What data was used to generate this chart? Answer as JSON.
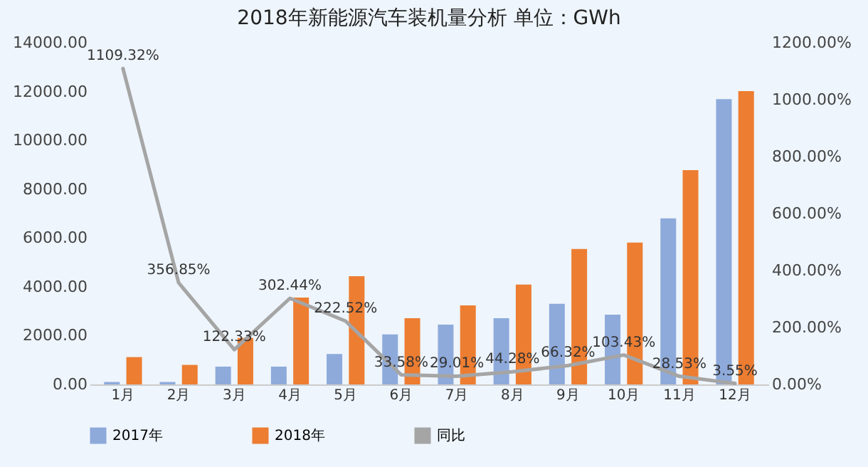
{
  "chart_data": {
    "type": "bar",
    "title": "2018年新能源汽车装机量分析     单位：GWh",
    "categories": [
      "1月",
      "2月",
      "3月",
      "4月",
      "5月",
      "6月",
      "7月",
      "8月",
      "9月",
      "10月",
      "11月",
      "12月"
    ],
    "series": [
      {
        "name": "2017年",
        "color": "#8eaadb",
        "values": [
          100,
          100,
          730,
          730,
          1250,
          2050,
          2450,
          2710,
          3300,
          2860,
          6800,
          11690
        ]
      },
      {
        "name": "2018年",
        "color": "#ed7d31",
        "values": [
          1120,
          800,
          1900,
          3560,
          4430,
          2710,
          3240,
          4090,
          5550,
          5810,
          8780,
          12020
        ]
      },
      {
        "name": "同比",
        "type": "line",
        "axis": "y2",
        "color": "#a5a5a5",
        "values": [
          1109.32,
          356.85,
          122.33,
          302.44,
          222.52,
          33.58,
          29.01,
          44.28,
          66.32,
          103.43,
          28.53,
          3.55
        ],
        "value_labels": [
          "1109.32%",
          "356.85%",
          "122.33%",
          "302.44%",
          "222.52%",
          "33.58%",
          "29.01%",
          "44.28%",
          "66.32%",
          "103.43%",
          "28.53%",
          "3.55%"
        ]
      }
    ],
    "ylim": [
      0,
      14000
    ],
    "yticks": [
      {
        "value": 0,
        "label": "0.00"
      },
      {
        "value": 2000,
        "label": "2000.00"
      },
      {
        "value": 4000,
        "label": "4000.00"
      },
      {
        "value": 6000,
        "label": "6000.00"
      },
      {
        "value": 8000,
        "label": "8000.00"
      },
      {
        "value": 10000,
        "label": "10000.00"
      },
      {
        "value": 12000,
        "label": "12000.00"
      },
      {
        "value": 14000,
        "label": "14000.00"
      }
    ],
    "y2lim": [
      0,
      1200
    ],
    "y2ticks": [
      {
        "value": 0,
        "label": "0.00%"
      },
      {
        "value": 200,
        "label": "200.00%"
      },
      {
        "value": 400,
        "label": "400.00%"
      },
      {
        "value": 600,
        "label": "600.00%"
      },
      {
        "value": 800,
        "label": "800.00%"
      },
      {
        "value": 1000,
        "label": "1000.00%"
      },
      {
        "value": 1200,
        "label": "1200.00%"
      }
    ],
    "grid": false,
    "legend": "bottom"
  }
}
